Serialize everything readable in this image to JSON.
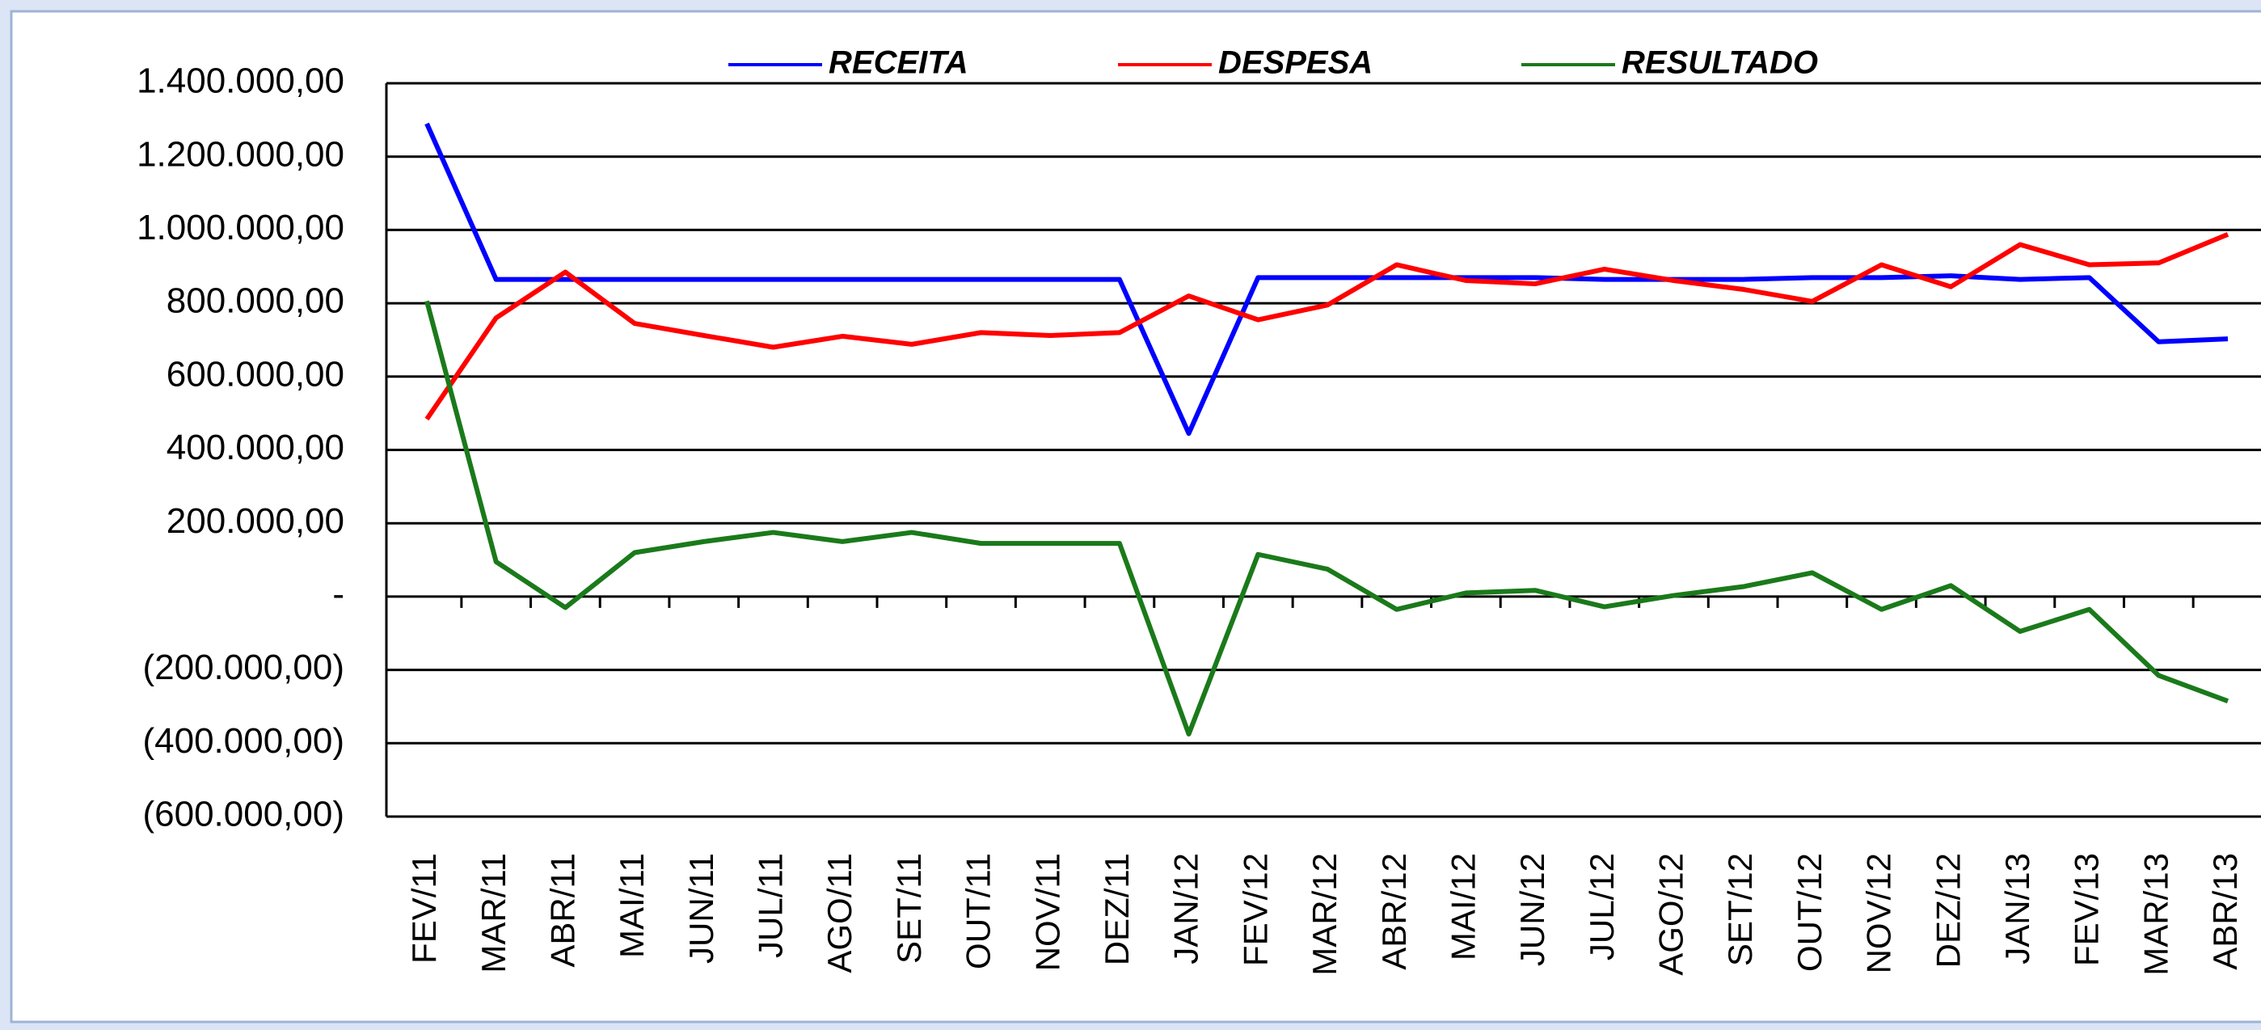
{
  "chart_data": {
    "type": "line",
    "categories": [
      "FEV/11",
      "MAR/11",
      "ABR/11",
      "MAI/11",
      "JUN/11",
      "JUL/11",
      "AGO/11",
      "SET/11",
      "OUT/11",
      "NOV/11",
      "DEZ/11",
      "JAN/12",
      "FEV/12",
      "MAR/12",
      "ABR/12",
      "MAI/12",
      "JUN/12",
      "JUL/12",
      "AGO/12",
      "SET/12",
      "OUT/12",
      "NOV/12",
      "DEZ/12",
      "JAN/13",
      "FEV/13",
      "MAR/13",
      "ABR/13"
    ],
    "series": [
      {
        "name": "RECEITA",
        "color": "#0000ff",
        "values": [
          1290000,
          865000,
          865000,
          865000,
          865000,
          865000,
          865000,
          865000,
          865000,
          865000,
          865000,
          445000,
          870000,
          870000,
          870000,
          870000,
          870000,
          865000,
          865000,
          865000,
          870000,
          870000,
          875000,
          865000,
          870000,
          695000,
          703000
        ]
      },
      {
        "name": "DESPESA",
        "color": "#ff0000",
        "values": [
          484000,
          760000,
          885000,
          745000,
          712000,
          680000,
          710000,
          688000,
          720000,
          712000,
          720000,
          820000,
          755000,
          795000,
          905000,
          862000,
          853000,
          893000,
          862000,
          838000,
          805000,
          905000,
          845000,
          960000,
          905000,
          910000,
          988000
        ]
      },
      {
        "name": "RESULTADO",
        "color": "#1a7a1a",
        "values": [
          806000,
          95000,
          -30000,
          120000,
          150000,
          175000,
          150000,
          175000,
          145000,
          145000,
          145000,
          -375000,
          115000,
          75000,
          -35000,
          10000,
          17000,
          -28000,
          3000,
          27000,
          65000,
          -35000,
          30000,
          -95000,
          -35000,
          -215000,
          -285000
        ]
      }
    ],
    "ylim": [
      -600000,
      1400000
    ],
    "yticks": [
      {
        "value": -600000,
        "label": "(600.000,00)"
      },
      {
        "value": -400000,
        "label": "(400.000,00)"
      },
      {
        "value": -200000,
        "label": "(200.000,00)"
      },
      {
        "value": 0,
        "label": "-"
      },
      {
        "value": 200000,
        "label": "200.000,00"
      },
      {
        "value": 400000,
        "label": "400.000,00"
      },
      {
        "value": 600000,
        "label": "600.000,00"
      },
      {
        "value": 800000,
        "label": "800.000,00"
      },
      {
        "value": 1000000,
        "label": "1.000.000,00"
      },
      {
        "value": 1200000,
        "label": "1.200.000,00"
      },
      {
        "value": 1400000,
        "label": "1.400.000,00"
      }
    ],
    "grid": true,
    "legend": "top"
  }
}
